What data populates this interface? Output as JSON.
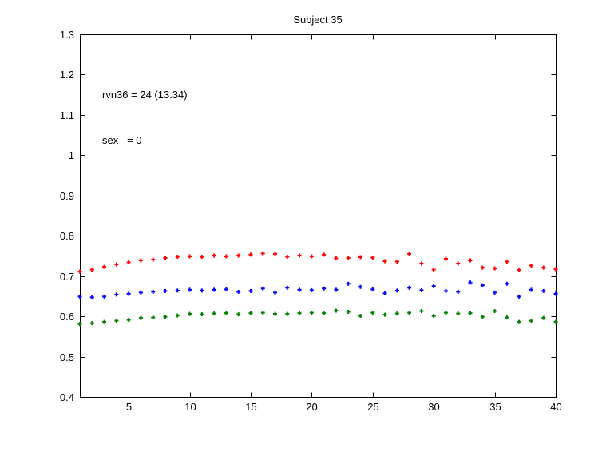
{
  "chart": {
    "title": "Subject 35",
    "annotation": {
      "line1": "rvn36 = 24 (13.34)",
      "line2": "sex   = 0"
    }
  },
  "chart_data": {
    "type": "scatter",
    "title": "Subject 35",
    "xlabel": "",
    "ylabel": "",
    "xlim": [
      1,
      40
    ],
    "ylim": [
      0.4,
      1.3
    ],
    "grid": false,
    "legend": null,
    "box": true,
    "tick_direction": "in",
    "axis_color": "#000000",
    "background_color": "#ffffff",
    "marker": "dot-plus",
    "xticks": [
      5,
      10,
      15,
      20,
      25,
      30,
      35,
      40
    ],
    "yticks": [
      "0.4",
      "0.5",
      "0.6",
      "0.7",
      "0.8",
      "0.9",
      "1",
      "1.1",
      "1.2",
      "1.3"
    ],
    "x": [
      1,
      2,
      3,
      4,
      5,
      6,
      7,
      8,
      9,
      10,
      11,
      12,
      13,
      14,
      15,
      16,
      17,
      18,
      19,
      20,
      21,
      22,
      23,
      24,
      25,
      26,
      27,
      28,
      29,
      30,
      31,
      32,
      33,
      34,
      35,
      36,
      37,
      38,
      39,
      40
    ],
    "series": [
      {
        "name": "red-series",
        "color": "#ff0000",
        "values": [
          0.711,
          0.716,
          0.723,
          0.729,
          0.734,
          0.739,
          0.741,
          0.745,
          0.748,
          0.749,
          0.748,
          0.751,
          0.749,
          0.751,
          0.753,
          0.756,
          0.755,
          0.748,
          0.751,
          0.749,
          0.753,
          0.744,
          0.745,
          0.747,
          0.746,
          0.737,
          0.736,
          0.755,
          0.731,
          0.716,
          0.743,
          0.731,
          0.739,
          0.721,
          0.719,
          0.736,
          0.715,
          0.726,
          0.721,
          0.717
        ]
      },
      {
        "name": "blue-series",
        "color": "#0000ff",
        "values": [
          0.649,
          0.647,
          0.649,
          0.654,
          0.656,
          0.659,
          0.661,
          0.663,
          0.664,
          0.666,
          0.664,
          0.666,
          0.667,
          0.661,
          0.663,
          0.669,
          0.659,
          0.671,
          0.666,
          0.665,
          0.669,
          0.666,
          0.681,
          0.673,
          0.667,
          0.657,
          0.664,
          0.671,
          0.665,
          0.675,
          0.663,
          0.661,
          0.684,
          0.677,
          0.659,
          0.681,
          0.649,
          0.666,
          0.663,
          0.656
        ]
      },
      {
        "name": "green-series",
        "color": "#007f00",
        "values": [
          0.581,
          0.583,
          0.586,
          0.589,
          0.591,
          0.596,
          0.597,
          0.599,
          0.602,
          0.606,
          0.605,
          0.607,
          0.608,
          0.605,
          0.608,
          0.609,
          0.606,
          0.606,
          0.608,
          0.609,
          0.608,
          0.614,
          0.611,
          0.601,
          0.609,
          0.604,
          0.607,
          0.609,
          0.613,
          0.601,
          0.609,
          0.607,
          0.608,
          0.599,
          0.613,
          0.597,
          0.586,
          0.589,
          0.596,
          0.586
        ]
      }
    ]
  }
}
